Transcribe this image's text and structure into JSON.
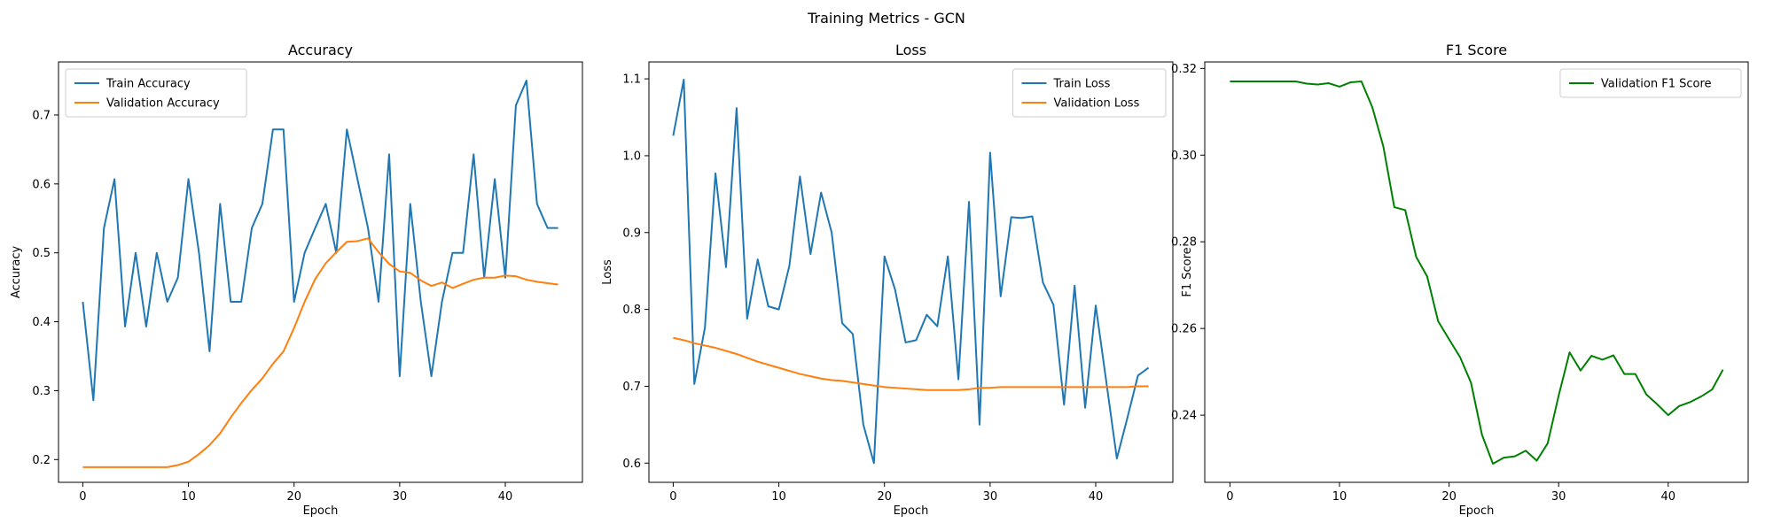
{
  "figure": {
    "suptitle": "Training Metrics - GCN"
  },
  "colors": {
    "train": "#1f77b4",
    "validation": "#ff7f0e",
    "f1": "#008000",
    "axes": "#000000",
    "background": "#ffffff"
  },
  "chart_data": [
    {
      "type": "line",
      "title": "Accuracy",
      "xlabel": "Epoch",
      "ylabel": "Accuracy",
      "xlim": [
        -2.3,
        47.3
      ],
      "ylim": [
        0.167,
        0.777
      ],
      "xticks": [
        0,
        10,
        20,
        30,
        40
      ],
      "yticks": [
        0.2,
        0.3,
        0.4,
        0.5,
        0.6,
        0.7
      ],
      "grid": false,
      "legend": "upper left",
      "x": [
        0,
        1,
        2,
        3,
        4,
        5,
        6,
        7,
        8,
        9,
        10,
        11,
        12,
        13,
        14,
        15,
        16,
        17,
        18,
        19,
        20,
        21,
        22,
        23,
        24,
        25,
        26,
        27,
        28,
        29,
        30,
        31,
        32,
        33,
        34,
        35,
        36,
        37,
        38,
        39,
        40,
        41,
        42,
        43,
        44,
        45
      ],
      "series": [
        {
          "name": "Train Accuracy",
          "color": "#1f77b4",
          "values": [
            0.429,
            0.286,
            0.536,
            0.607,
            0.393,
            0.5,
            0.393,
            0.5,
            0.429,
            0.464,
            0.607,
            0.5,
            0.357,
            0.571,
            0.429,
            0.429,
            0.536,
            0.571,
            0.679,
            0.679,
            0.429,
            0.5,
            0.536,
            0.571,
            0.5,
            0.679,
            0.607,
            0.536,
            0.429,
            0.643,
            0.321,
            0.571,
            0.429,
            0.321,
            0.429,
            0.5,
            0.5,
            0.643,
            0.464,
            0.607,
            0.464,
            0.714,
            0.75,
            0.571,
            0.536,
            0.536
          ]
        },
        {
          "name": "Validation Accuracy",
          "color": "#ff7f0e",
          "values": [
            0.189,
            0.189,
            0.189,
            0.189,
            0.189,
            0.189,
            0.189,
            0.189,
            0.189,
            0.192,
            0.197,
            0.208,
            0.221,
            0.238,
            0.261,
            0.282,
            0.301,
            0.318,
            0.339,
            0.357,
            0.391,
            0.429,
            0.462,
            0.485,
            0.501,
            0.516,
            0.517,
            0.521,
            0.501,
            0.484,
            0.473,
            0.471,
            0.46,
            0.452,
            0.457,
            0.449,
            0.455,
            0.461,
            0.464,
            0.464,
            0.467,
            0.466,
            0.461,
            0.458,
            0.456,
            0.454
          ]
        }
      ]
    },
    {
      "type": "line",
      "title": "Loss",
      "xlabel": "Epoch",
      "ylabel": "Loss",
      "xlim": [
        -2.3,
        47.3
      ],
      "ylim": [
        0.575,
        1.122
      ],
      "xticks": [
        0,
        10,
        20,
        30,
        40
      ],
      "yticks": [
        0.6,
        0.7,
        0.8,
        0.9,
        1.0,
        1.1
      ],
      "grid": false,
      "legend": "upper right",
      "x": [
        0,
        1,
        2,
        3,
        4,
        5,
        6,
        7,
        8,
        9,
        10,
        11,
        12,
        13,
        14,
        15,
        16,
        17,
        18,
        19,
        20,
        21,
        22,
        23,
        24,
        25,
        26,
        27,
        28,
        29,
        30,
        31,
        32,
        33,
        34,
        35,
        36,
        37,
        38,
        39,
        40,
        41,
        42,
        43,
        44,
        45
      ],
      "series": [
        {
          "name": "Train Loss",
          "color": "#1f77b4",
          "values": [
            1.026,
            1.099,
            0.703,
            0.776,
            0.977,
            0.855,
            1.062,
            0.788,
            0.865,
            0.804,
            0.8,
            0.857,
            0.973,
            0.872,
            0.952,
            0.9,
            0.782,
            0.768,
            0.65,
            0.6,
            0.869,
            0.826,
            0.757,
            0.76,
            0.793,
            0.778,
            0.869,
            0.709,
            0.94,
            0.65,
            1.004,
            0.817,
            0.92,
            0.919,
            0.921,
            0.835,
            0.806,
            0.676,
            0.831,
            0.672,
            0.805,
            0.706,
            0.606,
            0.659,
            0.714,
            0.724
          ]
        },
        {
          "name": "Validation Loss",
          "color": "#ff7f0e",
          "values": [
            0.763,
            0.76,
            0.756,
            0.753,
            0.75,
            0.746,
            0.742,
            0.737,
            0.732,
            0.728,
            0.724,
            0.72,
            0.716,
            0.713,
            0.71,
            0.708,
            0.707,
            0.705,
            0.703,
            0.701,
            0.699,
            0.698,
            0.697,
            0.696,
            0.695,
            0.695,
            0.695,
            0.695,
            0.696,
            0.698,
            0.698,
            0.699,
            0.699,
            0.699,
            0.699,
            0.699,
            0.699,
            0.699,
            0.699,
            0.699,
            0.699,
            0.699,
            0.699,
            0.699,
            0.7,
            0.7
          ]
        }
      ]
    },
    {
      "type": "line",
      "title": "F1 Score",
      "xlabel": "Epoch",
      "ylabel": "F1 Score",
      "xlim": [
        -2.3,
        47.3
      ],
      "ylim": [
        0.2245,
        0.3215
      ],
      "xticks": [
        0,
        10,
        20,
        30,
        40
      ],
      "yticks": [
        0.24,
        0.26,
        0.28,
        0.3,
        0.32
      ],
      "grid": false,
      "legend": "upper right",
      "x": [
        0,
        1,
        2,
        3,
        4,
        5,
        6,
        7,
        8,
        9,
        10,
        11,
        12,
        13,
        14,
        15,
        16,
        17,
        18,
        19,
        20,
        21,
        22,
        23,
        24,
        25,
        26,
        27,
        28,
        29,
        30,
        31,
        32,
        33,
        34,
        35,
        36,
        37,
        38,
        39,
        40,
        41,
        42,
        43,
        44,
        45
      ],
      "series": [
        {
          "name": "Validation F1 Score",
          "color": "#008000",
          "values": [
            0.317,
            0.317,
            0.317,
            0.317,
            0.317,
            0.317,
            0.317,
            0.3165,
            0.3163,
            0.3166,
            0.3158,
            0.3168,
            0.317,
            0.311,
            0.302,
            0.288,
            0.2873,
            0.2765,
            0.272,
            0.2617,
            0.2575,
            0.2534,
            0.2475,
            0.2355,
            0.2288,
            0.2302,
            0.2305,
            0.2318,
            0.2295,
            0.2335,
            0.2445,
            0.2545,
            0.2503,
            0.2537,
            0.2528,
            0.2538,
            0.2495,
            0.2495,
            0.2448,
            0.2425,
            0.24,
            0.2421,
            0.243,
            0.2443,
            0.2459,
            0.2505
          ]
        }
      ]
    }
  ]
}
